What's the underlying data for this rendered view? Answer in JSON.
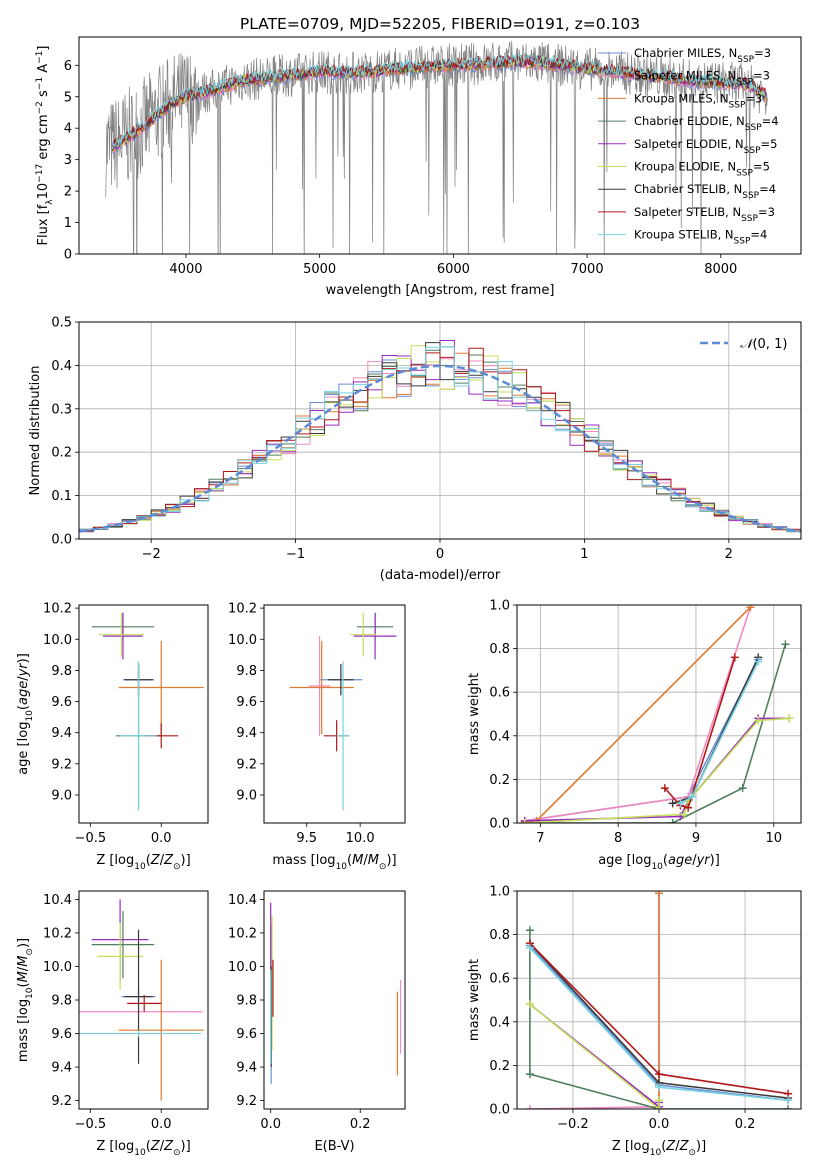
{
  "title": "PLATE=0709, MJD=52205, FIBERID=0191, z=0.103",
  "models": [
    {
      "name": "Chabrier MILES",
      "n": "3",
      "color": "#6a8fd8"
    },
    {
      "name": "Salpeter MILES",
      "n": "3",
      "color": "#f08ac0"
    },
    {
      "name": "Kroupa MILES",
      "n": "3",
      "color": "#e07a2e"
    },
    {
      "name": "Chabrier ELODIE",
      "n": "4",
      "color": "#4f7f5e"
    },
    {
      "name": "Salpeter ELODIE",
      "n": "5",
      "color": "#9a2bbf"
    },
    {
      "name": "Kroupa ELODIE",
      "n": "5",
      "color": "#c3e05a"
    },
    {
      "name": "Chabrier STELIB",
      "n": "4",
      "color": "#3a3a3a"
    },
    {
      "name": "Salpeter STELIB",
      "n": "3",
      "color": "#b01818"
    },
    {
      "name": "Kroupa STELIB",
      "n": "4",
      "color": "#78d2e0"
    }
  ],
  "data_color": "#808080",
  "chart_data": [
    {
      "type": "line",
      "id": "spectrum",
      "xlabel": "wavelength [Angstrom, rest frame]",
      "ylabel_prefix": "Flux [f",
      "xlim": [
        3200,
        8600
      ],
      "ylim": [
        0,
        6.9
      ],
      "xticks": [
        4000,
        5000,
        6000,
        7000,
        8000
      ],
      "yticks": [
        0,
        1,
        2,
        3,
        4,
        5,
        6
      ],
      "continuum": {
        "x": [
          3450,
          3600,
          3700,
          3800,
          3900,
          4000,
          4200,
          4400,
          4600,
          4800,
          5000,
          5200,
          5400,
          5600,
          5800,
          6000,
          6200,
          6400,
          6600,
          6800,
          7000,
          7200,
          7400,
          7600,
          7800,
          8000,
          8200,
          8350
        ],
        "y": [
          3.4,
          3.8,
          4.1,
          4.5,
          4.8,
          5.0,
          5.2,
          5.5,
          5.6,
          5.7,
          5.8,
          5.75,
          5.8,
          5.9,
          5.95,
          6.0,
          6.05,
          6.1,
          6.1,
          6.0,
          5.9,
          5.8,
          5.7,
          5.6,
          5.5,
          5.45,
          5.4,
          5.0
        ]
      },
      "legend": "upper right"
    },
    {
      "type": "line",
      "id": "residuals",
      "xlabel": "(data-model)/error",
      "ylabel": "Normed distribution",
      "xlim": [
        -2.5,
        2.5
      ],
      "ylim": [
        0,
        0.5
      ],
      "xticks": [
        -2,
        -1,
        0,
        1,
        2
      ],
      "yticks": [
        0,
        0.1,
        0.2,
        0.3,
        0.4,
        0.5
      ],
      "bin_width": 0.1,
      "gaussian_label": "N(0, 1)",
      "gaussian_color": "#5b8bd6",
      "grid": true
    },
    {
      "type": "scatter",
      "id": "age-vs-Z",
      "xlabel": "Z [log10(Z/Z⊙)]",
      "ylabel": "age [log10(age/yr)]",
      "xlim": [
        -0.58,
        0.33
      ],
      "ylim": [
        8.82,
        10.22
      ],
      "xticks": [
        -0.5,
        0.0
      ],
      "yticks": [
        9.0,
        9.2,
        9.4,
        9.6,
        9.8,
        10.0,
        10.2
      ],
      "errorbars": [
        {
          "m": 0,
          "x": -0.16,
          "y": 9.74,
          "xe": 0.11,
          "ye": 0.1
        },
        {
          "m": 2,
          "x": 0.0,
          "y": 9.69,
          "xe": 0.3,
          "ye": 0.3
        },
        {
          "m": 3,
          "x": -0.16,
          "y": 9.38,
          "xe": 0.16,
          "ye": 0.46
        },
        {
          "m": 3,
          "x": -0.27,
          "y": 10.08,
          "xe": 0.22,
          "ye": 0.09
        },
        {
          "m": 4,
          "x": -0.27,
          "y": 10.02,
          "xe": 0.14,
          "ye": 0.15
        },
        {
          "m": 5,
          "x": -0.28,
          "y": 10.03,
          "xe": 0.16,
          "ye": 0.14
        },
        {
          "m": 6,
          "x": -0.16,
          "y": 9.74,
          "xe": 0.1,
          "ye": 0.1
        },
        {
          "m": 7,
          "x": 0.0,
          "y": 9.38,
          "xe": 0.12,
          "ye": 0.08
        },
        {
          "m": 8,
          "x": -0.16,
          "y": 9.38,
          "xe": 0.13,
          "ye": 0.48
        }
      ]
    },
    {
      "type": "scatter",
      "id": "age-vs-mass",
      "xlabel": "mass [log10(M/M⊙)]",
      "ylabel": "",
      "xlim": [
        9.1,
        10.42
      ],
      "ylim": [
        8.82,
        10.22
      ],
      "xticks": [
        9.5,
        10.0
      ],
      "yticks": [
        9.0,
        9.2,
        9.4,
        9.6,
        9.8,
        10.0,
        10.2
      ],
      "errorbars": [
        {
          "m": 0,
          "x": 9.82,
          "y": 9.74,
          "xe": 0.2,
          "ye": 0.1
        },
        {
          "m": 1,
          "x": 9.62,
          "y": 9.7,
          "xe": 0.1,
          "ye": 0.32
        },
        {
          "m": 2,
          "x": 9.64,
          "y": 9.69,
          "xe": 0.3,
          "ye": 0.3
        },
        {
          "m": 3,
          "x": 10.14,
          "y": 10.08,
          "xe": 0.17,
          "ye": 0.09
        },
        {
          "m": 4,
          "x": 10.14,
          "y": 10.02,
          "xe": 0.2,
          "ye": 0.15
        },
        {
          "m": 5,
          "x": 10.03,
          "y": 10.03,
          "xe": 0.12,
          "ye": 0.14
        },
        {
          "m": 6,
          "x": 9.82,
          "y": 9.74,
          "xe": 0.12,
          "ye": 0.1
        },
        {
          "m": 7,
          "x": 9.78,
          "y": 9.38,
          "xe": 0.12,
          "ye": 0.1
        },
        {
          "m": 8,
          "x": 9.84,
          "y": 9.38,
          "xe": 0.06,
          "ye": 0.48
        }
      ]
    },
    {
      "type": "line",
      "id": "massweight-vs-age",
      "xlabel": "age [log10(age/yr)]",
      "ylabel": "mass weight",
      "xlim": [
        6.7,
        10.35
      ],
      "ylim": [
        0,
        1
      ],
      "xticks": [
        7,
        8,
        9,
        10
      ],
      "yticks": [
        0,
        0.2,
        0.4,
        0.6,
        0.8,
        1.0
      ],
      "grid": true,
      "series": [
        {
          "m": 0,
          "x": [
            6.8,
            8.9,
            9.8
          ],
          "y": [
            0.01,
            0.12,
            0.75
          ]
        },
        {
          "m": 1,
          "x": [
            6.8,
            8.9,
            9.7
          ],
          "y": [
            0.01,
            0.12,
            0.99
          ]
        },
        {
          "m": 2,
          "x": [
            6.8,
            6.95,
            9.7
          ],
          "y": [
            0.005,
            0.01,
            0.99
          ]
        },
        {
          "m": 3,
          "x": [
            6.8,
            8.7,
            9.6,
            10.15
          ],
          "y": [
            0.0,
            0.0,
            0.16,
            0.82
          ]
        },
        {
          "m": 4,
          "x": [
            6.8,
            8.8,
            8.9,
            9.8,
            10.2
          ],
          "y": [
            0.01,
            0.03,
            0.1,
            0.48,
            0.48
          ]
        },
        {
          "m": 5,
          "x": [
            6.8,
            8.85,
            8.9,
            9.8,
            10.2
          ],
          "y": [
            0.0,
            0.04,
            0.1,
            0.47,
            0.48
          ]
        },
        {
          "m": 6,
          "x": [
            8.7,
            8.95,
            9.8
          ],
          "y": [
            0.09,
            0.12,
            0.76
          ]
        },
        {
          "m": 7,
          "x": [
            8.6,
            8.8,
            8.9,
            9.5
          ],
          "y": [
            0.16,
            0.08,
            0.07,
            0.76
          ]
        },
        {
          "m": 8,
          "x": [
            8.8,
            8.95,
            9.8
          ],
          "y": [
            0.09,
            0.12,
            0.74
          ]
        }
      ]
    },
    {
      "type": "scatter",
      "id": "mass-vs-Z",
      "xlabel": "Z [log10(Z/Z⊙)]",
      "ylabel": "mass [log10(M/M⊙)]",
      "xlim": [
        -0.58,
        0.33
      ],
      "ylim": [
        9.15,
        10.45
      ],
      "xticks": [
        -0.5,
        0.0
      ],
      "yticks": [
        9.2,
        9.4,
        9.6,
        9.8,
        10.0,
        10.2,
        10.4
      ],
      "errorbars": [
        {
          "m": 0,
          "x": -0.16,
          "y": 9.82,
          "xe": 0.12,
          "ye": 0.05
        },
        {
          "m": 1,
          "x": -0.16,
          "y": 9.73,
          "xe": 0.45,
          "ye": 0.02
        },
        {
          "m": 2,
          "x": 0.0,
          "y": 9.62,
          "xe": 0.3,
          "ye": 0.42
        },
        {
          "m": 3,
          "x": -0.27,
          "y": 10.13,
          "xe": 0.22,
          "ye": 0.2
        },
        {
          "m": 4,
          "x": -0.29,
          "y": 10.16,
          "xe": 0.2,
          "ye": 0.24
        },
        {
          "m": 5,
          "x": -0.29,
          "y": 10.06,
          "xe": 0.16,
          "ye": 0.2
        },
        {
          "m": 6,
          "x": -0.16,
          "y": 9.82,
          "xe": 0.1,
          "ye": 0.4
        },
        {
          "m": 7,
          "x": -0.12,
          "y": 9.78,
          "xe": 0.12,
          "ye": 0.05
        },
        {
          "m": 8,
          "x": -0.16,
          "y": 9.6,
          "xe": 0.44,
          "ye": 0.02
        }
      ]
    },
    {
      "type": "scatter",
      "id": "mass-vs-ebv",
      "xlabel": "E(B-V)",
      "ylabel": "",
      "xlim": [
        -0.015,
        0.3
      ],
      "ylim": [
        9.15,
        10.45
      ],
      "xticks": [
        0.0,
        0.2
      ],
      "yticks": [
        9.2,
        9.4,
        9.6,
        9.8,
        10.0,
        10.2,
        10.4
      ],
      "errorbars": [
        {
          "m": 0,
          "x": 0.001,
          "y": 9.6,
          "xe": 0,
          "ye": 0.3
        },
        {
          "m": 1,
          "x": 0.29,
          "y": 9.7,
          "xe": 0,
          "ye": 0.22
        },
        {
          "m": 2,
          "x": 0.283,
          "y": 9.6,
          "xe": 0,
          "ye": 0.25
        },
        {
          "m": 3,
          "x": 0.002,
          "y": 9.9,
          "xe": 0,
          "ye": 0.35
        },
        {
          "m": 4,
          "x": 0.0,
          "y": 10.0,
          "xe": 0,
          "ye": 0.38
        },
        {
          "m": 5,
          "x": 0.003,
          "y": 9.9,
          "xe": 0,
          "ye": 0.4
        },
        {
          "m": 6,
          "x": 0.001,
          "y": 9.7,
          "xe": 0,
          "ye": 0.3
        },
        {
          "m": 7,
          "x": 0.005,
          "y": 9.87,
          "xe": 0,
          "ye": 0.17
        },
        {
          "m": 8,
          "x": 0.0,
          "y": 9.7,
          "xe": 0,
          "ye": 0.28
        }
      ]
    },
    {
      "type": "line",
      "id": "massweight-vs-Z",
      "xlabel": "Z [log10(Z/Z⊙)]",
      "ylabel": "mass weight",
      "xlim": [
        -0.33,
        0.33
      ],
      "ylim": [
        0,
        1
      ],
      "xticks": [
        -0.2,
        0.0,
        0.2
      ],
      "yticks": [
        0,
        0.2,
        0.4,
        0.6,
        0.8,
        1.0
      ],
      "grid": true,
      "series": [
        {
          "m": 0,
          "x": [
            -0.3,
            0.0,
            0.3
          ],
          "y": [
            0.75,
            0.11,
            0.04
          ]
        },
        {
          "m": 1,
          "x": [
            -0.3,
            0.0,
            0.0
          ],
          "y": [
            0.0,
            0.01,
            0.99
          ]
        },
        {
          "m": 2,
          "x": [
            0.0,
            0.0
          ],
          "y": [
            0.0,
            0.99
          ]
        },
        {
          "m": 3,
          "x": [
            -0.3,
            -0.3,
            0.0,
            0.3
          ],
          "y": [
            0.82,
            0.16,
            0.0,
            0.0
          ]
        },
        {
          "m": 4,
          "x": [
            -0.3,
            0.0,
            0.0
          ],
          "y": [
            0.48,
            0.01,
            0.03
          ]
        },
        {
          "m": 5,
          "x": [
            -0.3,
            0.0,
            0.0
          ],
          "y": [
            0.48,
            0.0,
            0.04
          ]
        },
        {
          "m": 6,
          "x": [
            -0.3,
            0.0,
            0.3
          ],
          "y": [
            0.76,
            0.12,
            0.05
          ]
        },
        {
          "m": 7,
          "x": [
            -0.3,
            0.0,
            0.3
          ],
          "y": [
            0.76,
            0.16,
            0.07
          ]
        },
        {
          "m": 8,
          "x": [
            -0.3,
            0.0,
            0.3
          ],
          "y": [
            0.74,
            0.1,
            0.04
          ]
        }
      ]
    }
  ]
}
